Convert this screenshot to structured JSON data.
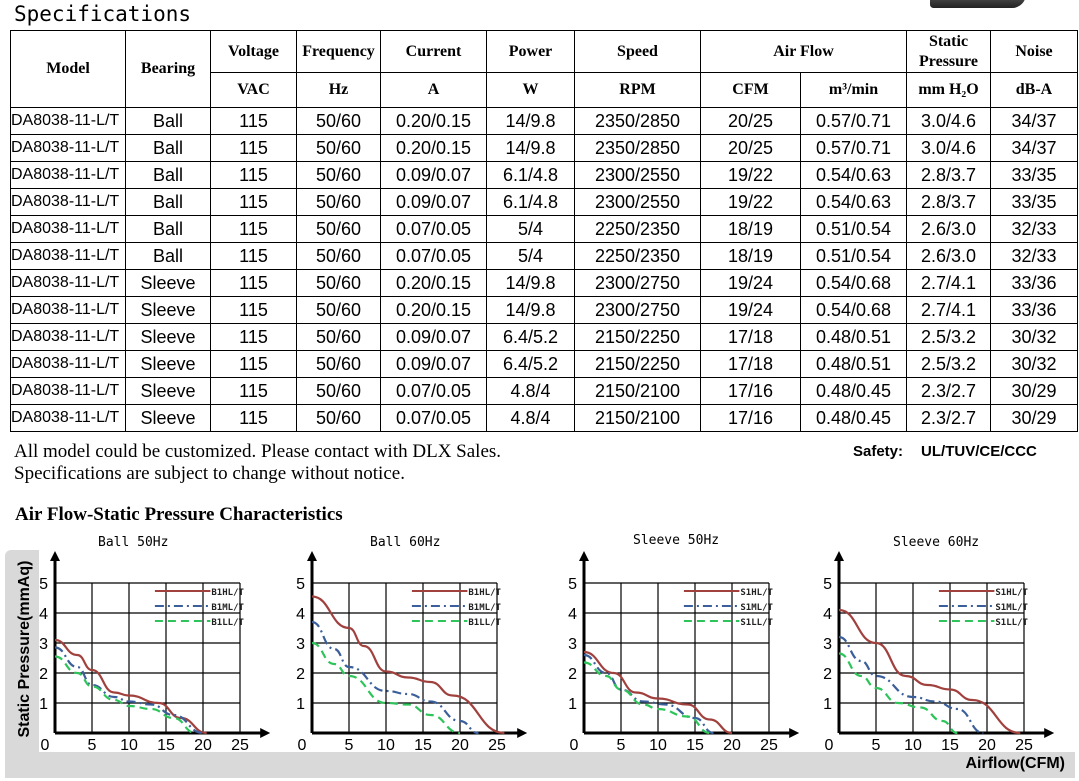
{
  "title": "Specifications",
  "table": {
    "headers": [
      "Model",
      "Bearing",
      "Voltage",
      "Frequency",
      "Current",
      "Power",
      "Speed",
      "Air Flow",
      "Static Pressure",
      "Noise"
    ],
    "units": [
      "VAC",
      "Hz",
      "A",
      "W",
      "RPM",
      "CFM",
      "m³/min",
      "mm H₂O",
      "dB-A"
    ],
    "rows": [
      [
        "DA8038-11-L/T",
        "Ball",
        "115",
        "50/60",
        "0.20/0.15",
        "14/9.8",
        "2350/2850",
        "20/25",
        "0.57/0.71",
        "3.0/4.6",
        "34/37"
      ],
      [
        "DA8038-11-L/T",
        "Ball",
        "115",
        "50/60",
        "0.20/0.15",
        "14/9.8",
        "2350/2850",
        "20/25",
        "0.57/0.71",
        "3.0/4.6",
        "34/37"
      ],
      [
        "DA8038-11-L/T",
        "Ball",
        "115",
        "50/60",
        "0.09/0.07",
        "6.1/4.8",
        "2300/2550",
        "19/22",
        "0.54/0.63",
        "2.8/3.7",
        "33/35"
      ],
      [
        "DA8038-11-L/T",
        "Ball",
        "115",
        "50/60",
        "0.09/0.07",
        "6.1/4.8",
        "2300/2550",
        "19/22",
        "0.54/0.63",
        "2.8/3.7",
        "33/35"
      ],
      [
        "DA8038-11-L/T",
        "Ball",
        "115",
        "50/60",
        "0.07/0.05",
        "5/4",
        "2250/2350",
        "18/19",
        "0.51/0.54",
        "2.6/3.0",
        "32/33"
      ],
      [
        "DA8038-11-L/T",
        "Ball",
        "115",
        "50/60",
        "0.07/0.05",
        "5/4",
        "2250/2350",
        "18/19",
        "0.51/0.54",
        "2.6/3.0",
        "32/33"
      ],
      [
        "DA8038-11-L/T",
        "Sleeve",
        "115",
        "50/60",
        "0.20/0.15",
        "14/9.8",
        "2300/2750",
        "19/24",
        "0.54/0.68",
        "2.7/4.1",
        "33/36"
      ],
      [
        "DA8038-11-L/T",
        "Sleeve",
        "115",
        "50/60",
        "0.20/0.15",
        "14/9.8",
        "2300/2750",
        "19/24",
        "0.54/0.68",
        "2.7/4.1",
        "33/36"
      ],
      [
        "DA8038-11-L/T",
        "Sleeve",
        "115",
        "50/60",
        "0.09/0.07",
        "6.4/5.2",
        "2150/2250",
        "17/18",
        "0.48/0.51",
        "2.5/3.2",
        "30/32"
      ],
      [
        "DA8038-11-L/T",
        "Sleeve",
        "115",
        "50/60",
        "0.09/0.07",
        "6.4/5.2",
        "2150/2250",
        "17/18",
        "0.48/0.51",
        "2.5/3.2",
        "30/32"
      ],
      [
        "DA8038-11-L/T",
        "Sleeve",
        "115",
        "50/60",
        "0.07/0.05",
        "4.8/4",
        "2150/2100",
        "17/16",
        "0.48/0.45",
        "2.3/2.7",
        "30/29"
      ],
      [
        "DA8038-11-L/T",
        "Sleeve",
        "115",
        "50/60",
        "0.07/0.05",
        "4.8/4",
        "2150/2100",
        "17/16",
        "0.48/0.45",
        "2.3/2.7",
        "30/29"
      ]
    ]
  },
  "notes": [
    "All model could be customized. Please contact with DLX Sales.",
    "Specifications are subject to change without notice."
  ],
  "safety": {
    "label": "Safety:",
    "value": "UL/TUV/CE/CCC"
  },
  "charts_title": "Air Flow-Static Pressure Characteristics",
  "ylabel": "Static Pressure(mmAq)",
  "xlabel": "Airflow(CFM)",
  "colors": {
    "high": "#a0413e",
    "mid": "#3a5f9a",
    "low": "#2ec45a"
  },
  "chart_data": [
    {
      "type": "line",
      "title": "Ball 50Hz",
      "xlim": [
        0,
        25
      ],
      "ylim": [
        0,
        5
      ],
      "xticks": [
        0,
        5,
        10,
        15,
        20,
        25
      ],
      "yticks": [
        1,
        2,
        3,
        4,
        5
      ],
      "grid": true,
      "legend": "top-right",
      "series": [
        {
          "name": "B1HL/T",
          "style": "solid",
          "x": [
            0,
            3,
            5,
            8,
            10,
            14,
            17,
            20.5
          ],
          "y": [
            3.1,
            2.6,
            2.1,
            1.35,
            1.25,
            1.0,
            0.5,
            0
          ]
        },
        {
          "name": "B1ML/T",
          "style": "dashdot",
          "x": [
            0,
            3,
            5,
            8,
            10,
            13,
            16,
            20
          ],
          "y": [
            2.85,
            2.2,
            1.6,
            1.2,
            1.05,
            0.95,
            0.6,
            0
          ]
        },
        {
          "name": "B1LL/T",
          "style": "dashed",
          "x": [
            0,
            3,
            5,
            8,
            10,
            13,
            16,
            19
          ],
          "y": [
            2.55,
            2.0,
            1.55,
            1.1,
            0.9,
            0.8,
            0.5,
            0
          ]
        }
      ]
    },
    {
      "type": "line",
      "title": "Ball 60Hz",
      "xlim": [
        0,
        25
      ],
      "ylim": [
        0,
        5
      ],
      "xticks": [
        0,
        5,
        10,
        15,
        20,
        25
      ],
      "yticks": [
        1,
        2,
        3,
        4,
        5
      ],
      "grid": true,
      "legend": "top-right",
      "series": [
        {
          "name": "B1HL/T",
          "style": "solid",
          "x": [
            0,
            5,
            7,
            10,
            13,
            16,
            19,
            26
          ],
          "y": [
            4.55,
            3.5,
            2.9,
            2.05,
            1.85,
            1.7,
            1.25,
            0
          ]
        },
        {
          "name": "B1ML/T",
          "style": "dashdot",
          "x": [
            0,
            3,
            5,
            10,
            13,
            16,
            20,
            22.5
          ],
          "y": [
            3.7,
            2.8,
            2.2,
            1.4,
            1.3,
            1.05,
            0.4,
            0
          ]
        },
        {
          "name": "B1LL/T",
          "style": "dashed",
          "x": [
            0,
            3,
            5,
            10,
            13,
            16,
            20
          ],
          "y": [
            3.0,
            2.3,
            1.9,
            1.0,
            0.95,
            0.6,
            0
          ]
        }
      ]
    },
    {
      "type": "line",
      "title": "Sleeve 50Hz",
      "xlim": [
        0,
        25
      ],
      "ylim": [
        0,
        5
      ],
      "xticks": [
        0,
        5,
        10,
        15,
        20,
        25
      ],
      "yticks": [
        1,
        2,
        3,
        4,
        5
      ],
      "grid": true,
      "legend": "top-right",
      "series": [
        {
          "name": "S1HL/T",
          "style": "solid",
          "x": [
            0,
            4,
            7,
            10,
            14,
            17,
            20
          ],
          "y": [
            2.7,
            2.0,
            1.35,
            1.15,
            0.95,
            0.45,
            0
          ]
        },
        {
          "name": "S1ML/T",
          "style": "dashdot",
          "x": [
            0,
            3,
            5,
            8,
            11,
            15,
            17.5
          ],
          "y": [
            2.6,
            2.0,
            1.45,
            1.05,
            0.95,
            0.5,
            0
          ]
        },
        {
          "name": "S1LL/T",
          "style": "dashed",
          "x": [
            0,
            3,
            5,
            8,
            10,
            14,
            17
          ],
          "y": [
            2.35,
            1.9,
            1.45,
            0.95,
            0.8,
            0.55,
            0
          ]
        }
      ]
    },
    {
      "type": "line",
      "title": "Sleeve 60Hz",
      "xlim": [
        0,
        25
      ],
      "ylim": [
        0,
        5
      ],
      "xticks": [
        0,
        5,
        10,
        15,
        20,
        25
      ],
      "yticks": [
        1,
        2,
        3,
        4,
        5
      ],
      "grid": true,
      "legend": "top-right",
      "series": [
        {
          "name": "S1HL/T",
          "style": "solid",
          "x": [
            0,
            5,
            9,
            12,
            15,
            18,
            24.5
          ],
          "y": [
            4.1,
            3.0,
            1.9,
            1.6,
            1.45,
            1.1,
            0
          ]
        },
        {
          "name": "S1ML/T",
          "style": "dashdot",
          "x": [
            0,
            3,
            5,
            10,
            13,
            16,
            19.5
          ],
          "y": [
            3.2,
            2.4,
            1.9,
            1.2,
            1.05,
            0.8,
            0
          ]
        },
        {
          "name": "S1LL/T",
          "style": "dashed",
          "x": [
            0,
            3,
            5,
            8,
            11,
            14,
            16
          ],
          "y": [
            2.65,
            1.9,
            1.5,
            1.0,
            0.85,
            0.4,
            0
          ]
        }
      ]
    }
  ]
}
